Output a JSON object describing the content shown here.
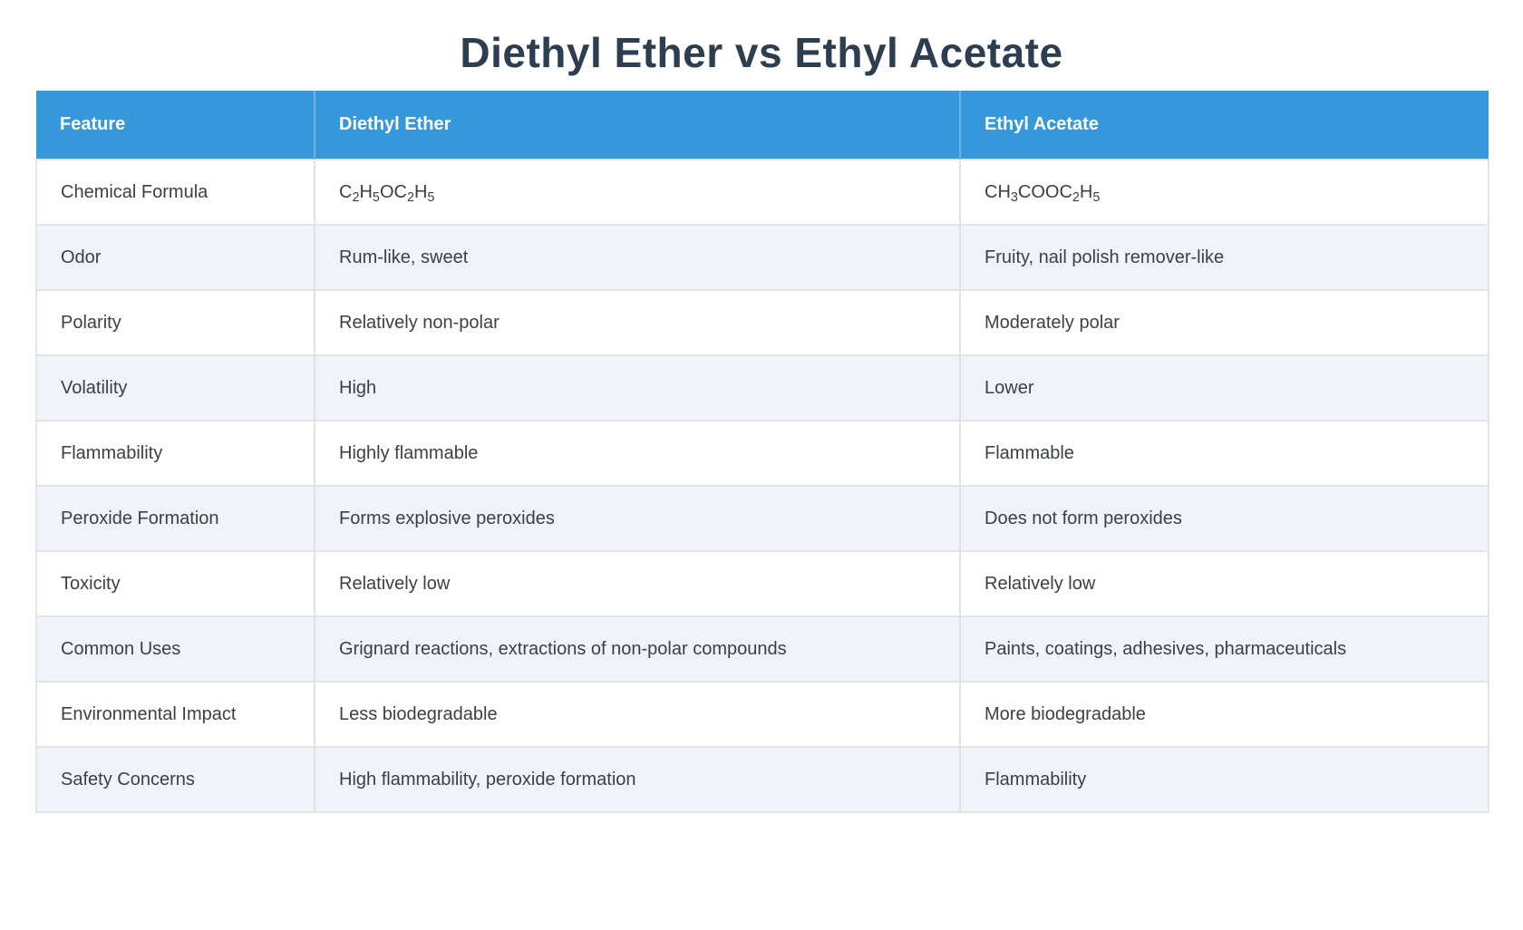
{
  "page_title": "Diethyl Ether vs Ethyl Acetate",
  "colors": {
    "header_blue": "#3498db",
    "row_alt": "#f0f3f8",
    "border": "#e0e2e5",
    "text": "#3b4045",
    "title": "#2c3e50"
  },
  "table": {
    "columns": [
      "Feature",
      "Diethyl Ether",
      "Ethyl Acetate"
    ],
    "rows": [
      {
        "feature": "Chemical Formula",
        "diethyl_ether": "C2H5OC2H5",
        "ethyl_acetate": "CH3COOC2H5",
        "formula": true
      },
      {
        "feature": "Odor",
        "diethyl_ether": "Rum-like, sweet",
        "ethyl_acetate": "Fruity, nail polish remover-like"
      },
      {
        "feature": "Polarity",
        "diethyl_ether": "Relatively non-polar",
        "ethyl_acetate": "Moderately polar"
      },
      {
        "feature": "Volatility",
        "diethyl_ether": "High",
        "ethyl_acetate": "Lower"
      },
      {
        "feature": "Flammability",
        "diethyl_ether": "Highly flammable",
        "ethyl_acetate": "Flammable"
      },
      {
        "feature": "Peroxide Formation",
        "diethyl_ether": "Forms explosive peroxides",
        "ethyl_acetate": "Does not form peroxides"
      },
      {
        "feature": "Toxicity",
        "diethyl_ether": "Relatively low",
        "ethyl_acetate": "Relatively low"
      },
      {
        "feature": "Common Uses",
        "diethyl_ether": "Grignard reactions, extractions of non-polar compounds",
        "ethyl_acetate": "Paints, coatings, adhesives, pharmaceuticals"
      },
      {
        "feature": "Environmental Impact",
        "diethyl_ether": "Less biodegradable",
        "ethyl_acetate": "More biodegradable"
      },
      {
        "feature": "Safety Concerns",
        "diethyl_ether": "High flammability, peroxide formation",
        "ethyl_acetate": "Flammability"
      }
    ]
  }
}
